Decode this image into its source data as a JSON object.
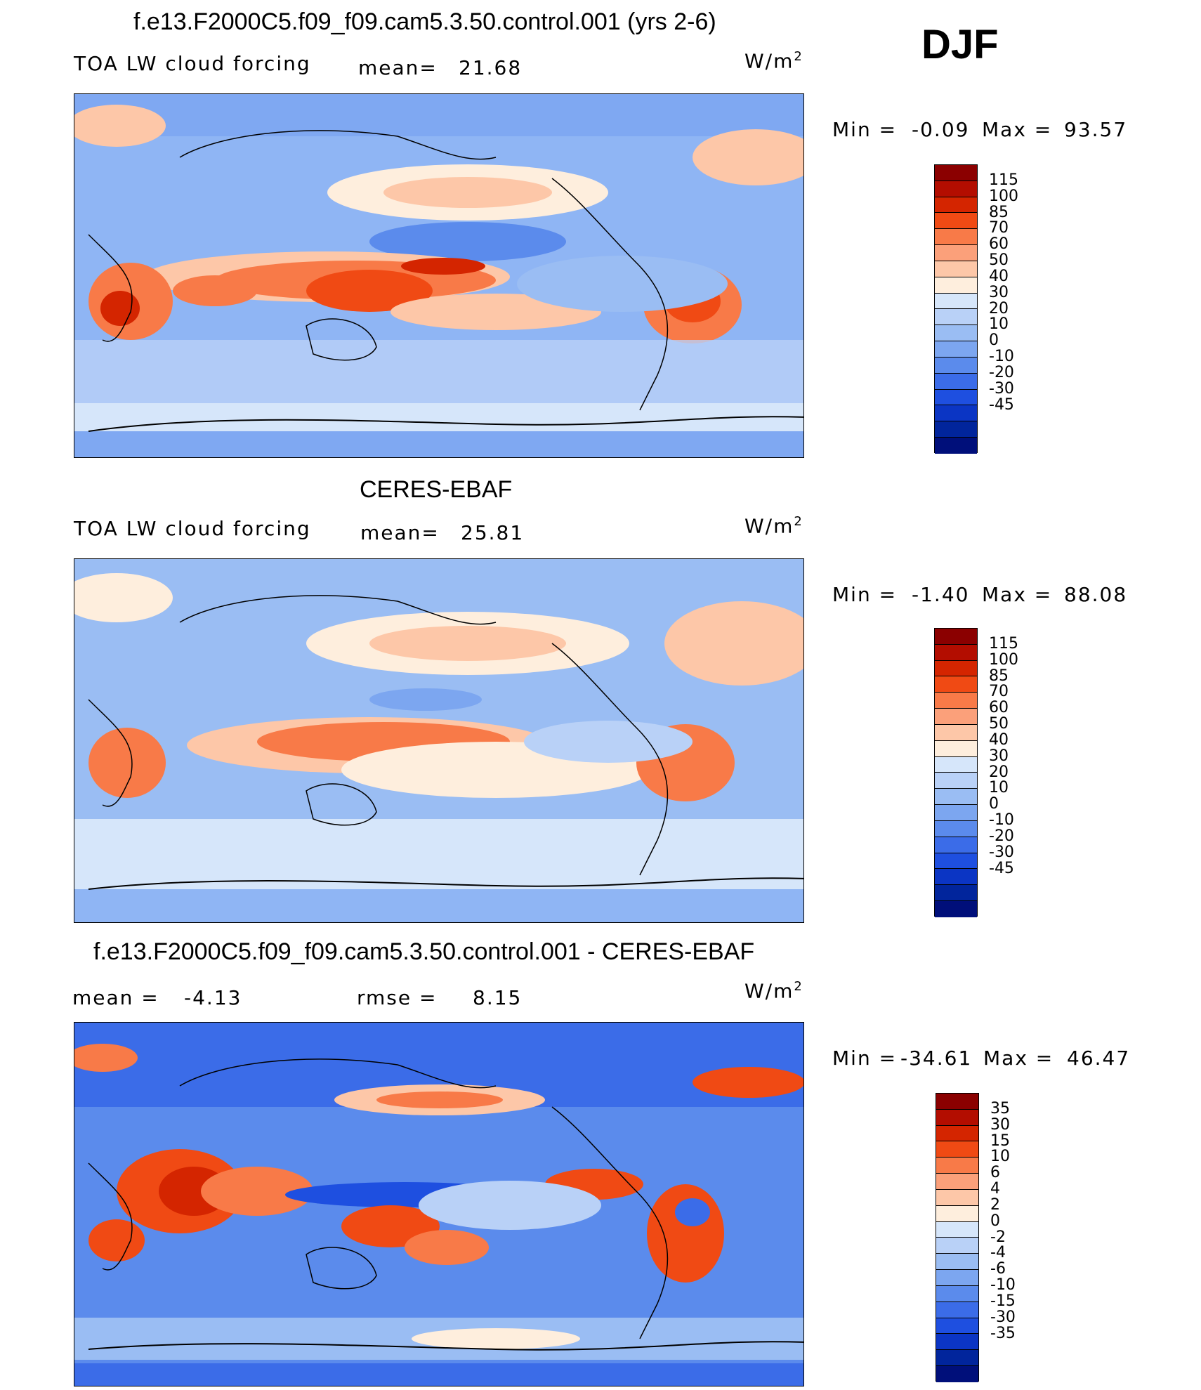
{
  "season": "DJF",
  "colorbar_colors": {
    "model": [
      "#8b0000",
      "#b30d00",
      "#d42500",
      "#f04a14",
      "#f87a48",
      "#fba07a",
      "#fdc7a8",
      "#feeedd",
      "#d6e6fa",
      "#b9d1f7",
      "#9abdf3",
      "#7ca6f0",
      "#5b8bec",
      "#3b6ce8",
      "#1e4fe0",
      "#0b35c4",
      "#01259c",
      "#000f7a"
    ],
    "obs": [
      "#8b0000",
      "#b30d00",
      "#d42500",
      "#f04a14",
      "#f87a48",
      "#fba07a",
      "#fdc7a8",
      "#feeedd",
      "#d6e6fa",
      "#b9d1f7",
      "#9abdf3",
      "#7ca6f0",
      "#5b8bec",
      "#3b6ce8",
      "#1e4fe0",
      "#0b35c4",
      "#01259c",
      "#000f7a"
    ],
    "diff": [
      "#8b0000",
      "#b30d00",
      "#d42500",
      "#f04a14",
      "#f87a48",
      "#fba07a",
      "#fdc7a8",
      "#feeedd",
      "#d6e6fa",
      "#b9d1f7",
      "#9abdf3",
      "#7ca6f0",
      "#5b8bec",
      "#3b6ce8",
      "#1e4fe0",
      "#0b35c4",
      "#01259c",
      "#000f7a"
    ]
  },
  "panels": {
    "model": {
      "title": "f.e13.F2000C5.f09_f09.cam5.3.50.control.001 (yrs 2-6)",
      "variable": "TOA LW cloud forcing",
      "mean_label": "mean=",
      "mean_value": "21.68",
      "units_base": "W/m",
      "units_exp": "2",
      "min_label": "Min =",
      "min_value": "-0.09",
      "max_label": "Max =",
      "max_value": "93.57",
      "colorbar_ticks": [
        "115",
        "100",
        "85",
        "70",
        "60",
        "50",
        "40",
        "30",
        "20",
        "10",
        "0",
        "-10",
        "-20",
        "-30",
        "-45"
      ]
    },
    "obs": {
      "title": "CERES-EBAF",
      "variable": "TOA LW cloud forcing",
      "mean_label": "mean=",
      "mean_value": "25.81",
      "units_base": "W/m",
      "units_exp": "2",
      "min_label": "Min =",
      "min_value": "-1.40",
      "max_label": "Max =",
      "max_value": "88.08",
      "colorbar_ticks": [
        "115",
        "100",
        "85",
        "70",
        "60",
        "50",
        "40",
        "30",
        "20",
        "10",
        "0",
        "-10",
        "-20",
        "-30",
        "-45"
      ]
    },
    "diff": {
      "title": "f.e13.F2000C5.f09_f09.cam5.3.50.control.001 - CERES-EBAF",
      "mean_label": "mean =",
      "mean_value": "-4.13",
      "rmse_label": "rmse =",
      "rmse_value": "8.15",
      "units_base": "W/m",
      "units_exp": "2",
      "min_label": "Min =",
      "min_value": "-34.61",
      "max_label": "Max =",
      "max_value": "46.47",
      "colorbar_ticks": [
        "35",
        "30",
        "15",
        "10",
        "6",
        "4",
        "2",
        "0",
        "-2",
        "-4",
        "-6",
        "-10",
        "-15",
        "-30",
        "-35"
      ]
    }
  }
}
